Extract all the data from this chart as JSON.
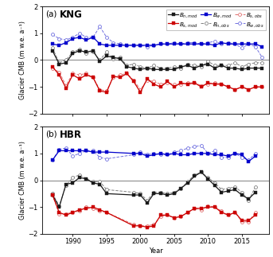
{
  "title_a": "KNG",
  "title_b": "HBR",
  "label_a": "(a)",
  "label_b": "(b)",
  "ylabel": "Glacier CMB (m w.e. a⁻¹)",
  "xlabel": "Year",
  "ylim": [
    -2,
    2
  ],
  "yticks": [
    -2,
    -1,
    0,
    1,
    2
  ],
  "xlim": [
    1985.5,
    2019
  ],
  "xticks": [
    1990,
    1995,
    2000,
    2005,
    2010,
    2015
  ],
  "KNG": {
    "years_mod": [
      1987,
      1988,
      1989,
      1990,
      1991,
      1992,
      1993,
      1994,
      1995,
      1996,
      1997,
      1998,
      1999,
      2000,
      2001,
      2002,
      2003,
      2004,
      2005,
      2006,
      2007,
      2008,
      2009,
      2010,
      2011,
      2012,
      2013,
      2014,
      2015,
      2016,
      2017,
      2018
    ],
    "Bn_mod": [
      0.35,
      -0.15,
      -0.1,
      0.25,
      0.35,
      0.3,
      0.35,
      -0.05,
      0.15,
      0.1,
      0.05,
      -0.25,
      -0.3,
      -0.35,
      -0.3,
      -0.35,
      -0.35,
      -0.35,
      -0.35,
      -0.25,
      -0.2,
      -0.3,
      -0.2,
      -0.15,
      -0.3,
      -0.2,
      -0.3,
      -0.3,
      -0.35,
      -0.3,
      -0.3,
      -0.3
    ],
    "Bs_mod": [
      -0.25,
      -0.55,
      -1.05,
      -0.55,
      -0.7,
      -0.55,
      -0.65,
      -1.15,
      -1.2,
      -0.6,
      -0.65,
      -0.5,
      -0.8,
      -1.2,
      -0.7,
      -0.9,
      -1.0,
      -0.8,
      -1.0,
      -0.85,
      -0.9,
      -0.85,
      -1.0,
      -0.85,
      -0.9,
      -0.9,
      -1.0,
      -1.1,
      -1.0,
      -1.1,
      -1.0,
      -1.0
    ],
    "Bw_mod": [
      0.6,
      0.55,
      0.65,
      0.8,
      0.85,
      0.75,
      0.85,
      0.6,
      0.55,
      0.55,
      0.55,
      0.55,
      0.55,
      0.55,
      0.55,
      0.55,
      0.6,
      0.6,
      0.6,
      0.6,
      0.6,
      0.6,
      0.6,
      0.6,
      0.55,
      0.65,
      0.6,
      0.6,
      0.6,
      0.6,
      0.6,
      0.5
    ],
    "years_obs": [
      1987,
      1988,
      1989,
      1990,
      1991,
      1992,
      1993,
      1994,
      1995,
      1996,
      1997,
      1998,
      1999,
      2000,
      2001,
      2002,
      2003,
      2004,
      2005,
      2006,
      2007,
      2008,
      2009,
      2010,
      2011,
      2012,
      2013,
      2014,
      2015,
      2016,
      2017,
      2018
    ],
    "Bn_obs": [
      0.45,
      -0.1,
      0.0,
      0.3,
      0.4,
      0.25,
      0.3,
      0.0,
      0.3,
      0.05,
      0.1,
      -0.2,
      -0.15,
      -0.25,
      -0.3,
      -0.2,
      -0.3,
      -0.3,
      -0.25,
      -0.3,
      -0.15,
      -0.2,
      -0.25,
      -0.05,
      -0.2,
      -0.2,
      -0.2,
      -0.1,
      -0.25,
      -0.15,
      -0.1,
      -0.1
    ],
    "Bs_obs": [
      -0.3,
      -0.45,
      -0.95,
      -0.5,
      -0.55,
      -0.5,
      -0.65,
      -1.1,
      -1.15,
      -0.65,
      -0.55,
      -0.5,
      -0.75,
      -1.1,
      -0.75,
      -0.8,
      -0.9,
      -0.85,
      -0.9,
      -0.9,
      -0.85,
      -0.85,
      -0.95,
      -0.9,
      -0.85,
      -0.9,
      -1.0,
      -1.1,
      -1.0,
      -1.1,
      -1.0,
      -1.0
    ],
    "Bw_obs": [
      0.95,
      0.8,
      0.75,
      0.85,
      1.0,
      0.85,
      0.85,
      1.25,
      0.85,
      0.65,
      0.6,
      0.55,
      0.55,
      0.55,
      0.5,
      0.55,
      0.6,
      0.6,
      0.65,
      0.6,
      0.65,
      0.65,
      0.6,
      0.65,
      0.7,
      0.6,
      0.65,
      0.6,
      0.45,
      0.6,
      0.5,
      0.1
    ]
  },
  "HBR": {
    "years_mod": [
      1987,
      1988,
      1989,
      1990,
      1991,
      1992,
      1993,
      1994,
      1995,
      1999,
      2000,
      2001,
      2002,
      2003,
      2004,
      2005,
      2006,
      2007,
      2008,
      2009,
      2010,
      2011,
      2012,
      2013,
      2014,
      2015,
      2016,
      2017
    ],
    "Bn_mod": [
      -0.55,
      -1.0,
      -0.15,
      -0.1,
      0.1,
      0.05,
      -0.1,
      -0.15,
      -0.5,
      -0.55,
      -0.55,
      -0.85,
      -0.5,
      -0.5,
      -0.55,
      -0.5,
      -0.3,
      -0.1,
      0.15,
      0.3,
      0.05,
      -0.2,
      -0.45,
      -0.4,
      -0.35,
      -0.55,
      -0.7,
      -0.45
    ],
    "Bs_mod": [
      -0.55,
      -1.2,
      -1.3,
      -1.2,
      -1.1,
      -1.05,
      -1.0,
      -1.1,
      -1.2,
      -1.7,
      -1.7,
      -1.75,
      -1.7,
      -1.3,
      -1.3,
      -1.4,
      -1.35,
      -1.2,
      -1.05,
      -1.05,
      -1.0,
      -1.0,
      -1.2,
      -1.3,
      -1.2,
      -1.5,
      -1.5,
      -1.3
    ],
    "Bw_mod": [
      0.75,
      1.1,
      1.1,
      1.1,
      1.1,
      1.1,
      1.05,
      1.05,
      1.05,
      1.0,
      1.0,
      0.9,
      0.95,
      1.0,
      0.95,
      1.0,
      0.95,
      0.95,
      1.0,
      1.0,
      1.0,
      0.95,
      0.95,
      0.9,
      1.0,
      0.95,
      0.7,
      0.9
    ],
    "years_obs": [
      1987,
      1988,
      1989,
      1990,
      1991,
      1992,
      1993,
      1994,
      1995,
      1999,
      2000,
      2001,
      2002,
      2003,
      2004,
      2005,
      2006,
      2007,
      2008,
      2009,
      2010,
      2011,
      2012,
      2013,
      2014,
      2015,
      2016,
      2017
    ],
    "Bn_obs": [
      -0.5,
      -0.95,
      -0.2,
      0.1,
      0.2,
      0.05,
      -0.05,
      -0.05,
      -0.35,
      -0.45,
      -0.5,
      -0.75,
      -0.45,
      -0.45,
      -0.5,
      -0.45,
      -0.3,
      -0.05,
      0.2,
      0.3,
      0.1,
      -0.1,
      -0.35,
      -0.3,
      -0.25,
      -0.45,
      -0.75,
      -0.25
    ],
    "Bs_obs": [
      -0.55,
      -1.25,
      -1.25,
      -1.2,
      -1.15,
      -1.0,
      -1.05,
      -1.15,
      -1.2,
      -1.65,
      -1.7,
      -1.7,
      -1.65,
      -1.35,
      -1.3,
      -1.4,
      -1.35,
      -1.2,
      -1.05,
      -1.1,
      -0.95,
      -1.0,
      -1.15,
      -1.3,
      -1.2,
      -1.55,
      -1.55,
      -1.2
    ],
    "Bw_obs": [
      0.75,
      1.15,
      1.2,
      0.9,
      1.0,
      1.1,
      1.1,
      0.85,
      0.8,
      0.95,
      1.05,
      0.95,
      1.0,
      0.95,
      0.95,
      1.05,
      1.1,
      1.2,
      1.25,
      1.3,
      1.0,
      1.1,
      0.85,
      0.85,
      1.0,
      0.85,
      0.75,
      1.0
    ]
  },
  "colors": {
    "black_mod": "#1a1a1a",
    "red_mod": "#cc0000",
    "blue_mod": "#0000cc",
    "black_obs": "#808080",
    "red_obs": "#e07070",
    "blue_obs": "#7070e0"
  },
  "lw_mod": 0.9,
  "lw_obs": 0.7,
  "ms_mod": 2.8,
  "ms_obs": 2.8,
  "legend_fontsize": 5.2,
  "tick_fontsize": 6.0,
  "ylabel_fontsize": 5.8,
  "label_fontsize": 7.5,
  "title_fontsize": 8.5
}
